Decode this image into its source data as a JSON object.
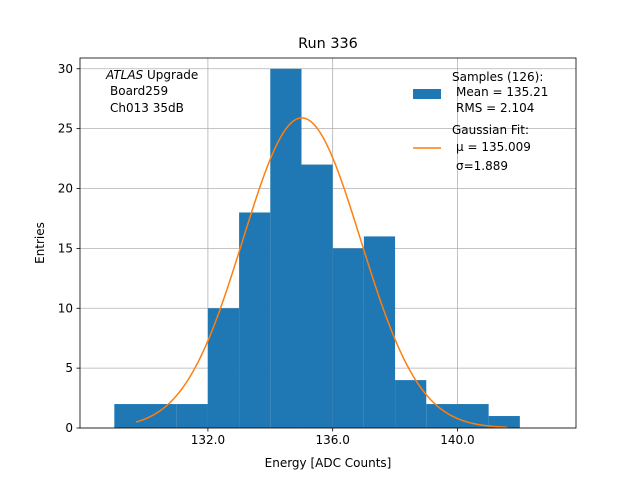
{
  "chart_data": {
    "type": "bar",
    "title": "Run 336",
    "xlabel": "Energy [ADC Counts]",
    "ylabel": "Entries",
    "xlim": [
      127.9,
      143.8
    ],
    "ylim": [
      0,
      30.9
    ],
    "xticks": [
      132,
      136,
      140
    ],
    "xtick_labels": [
      "132.0",
      "136.0",
      "140.0"
    ],
    "yticks": [
      0,
      5,
      10,
      15,
      20,
      25,
      30
    ],
    "ytick_labels": [
      "0",
      "5",
      "10",
      "15",
      "20",
      "25",
      "30"
    ],
    "grid": true,
    "annotation": {
      "italic": "ATLAS",
      "line1_rest": " Upgrade",
      "line2": "Board259",
      "line3": "Ch013 35dB"
    },
    "legend_position": "upper right",
    "series": [
      {
        "name": "Samples (126):",
        "type": "histogram",
        "color": "#1f77b4",
        "stats": [
          "Mean = 135.21",
          "RMS = 2.104"
        ],
        "bin_edges": [
          129,
          130,
          131,
          132,
          133,
          134,
          135,
          136,
          137,
          138,
          139,
          140,
          141,
          142
        ],
        "counts": [
          2,
          2,
          2,
          10,
          18,
          30,
          22,
          15,
          16,
          4,
          2,
          2,
          1
        ]
      },
      {
        "name": "Gaussian Fit:",
        "type": "line",
        "color": "#ff7f0e",
        "stats": [
          "μ = 135.009",
          "σ=1.889"
        ],
        "mu": 135.009,
        "sigma": 1.889,
        "amplitude": 25.9,
        "x_range": [
          129.7,
          141.6
        ]
      }
    ]
  }
}
